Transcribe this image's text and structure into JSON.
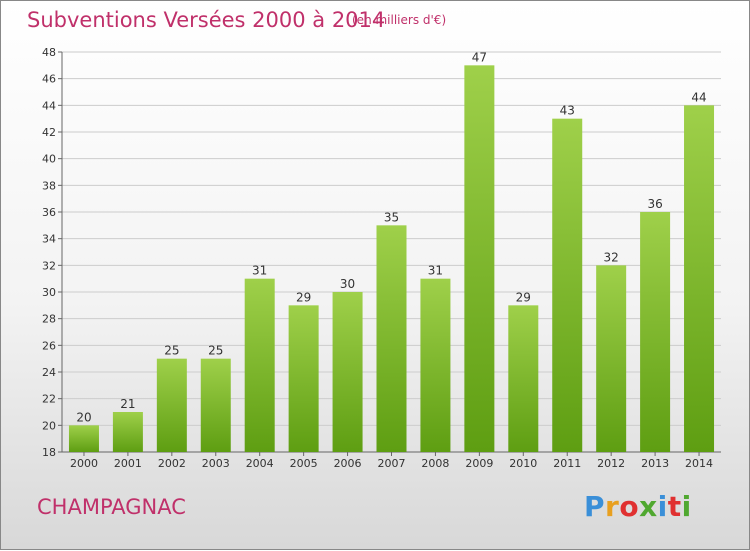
{
  "header": {
    "title": "Subventions Versées 2000 à 2014",
    "subtitle": "(en milliers d'€)"
  },
  "footer": {
    "commune": "CHAMPAGNAC",
    "logo_text": "Proxiti",
    "logo_colors": [
      "#3a8fd8",
      "#e8a020",
      "#e03030",
      "#50a830",
      "#3a8fd8",
      "#e03030",
      "#50a830"
    ]
  },
  "colors": {
    "title": "#c0306a",
    "bar_light": "#9fd04a",
    "bar_dark": "#5e9e12",
    "grid": "#cccccc"
  },
  "chart_data": {
    "type": "bar",
    "title": "Subventions Versées 2000 à 2014",
    "subtitle": "(en milliers d'€)",
    "categories": [
      "2000",
      "2001",
      "2002",
      "2003",
      "2004",
      "2005",
      "2006",
      "2007",
      "2008",
      "2009",
      "2010",
      "2011",
      "2012",
      "2013",
      "2014"
    ],
    "values": [
      20,
      21,
      25,
      25,
      31,
      29,
      30,
      35,
      31,
      47,
      29,
      43,
      32,
      36,
      44
    ],
    "ylim": [
      18,
      48
    ],
    "yticks": [
      18,
      20,
      22,
      24,
      26,
      28,
      30,
      32,
      34,
      36,
      38,
      40,
      42,
      44,
      46,
      48
    ],
    "grid": true,
    "legend": "none"
  }
}
